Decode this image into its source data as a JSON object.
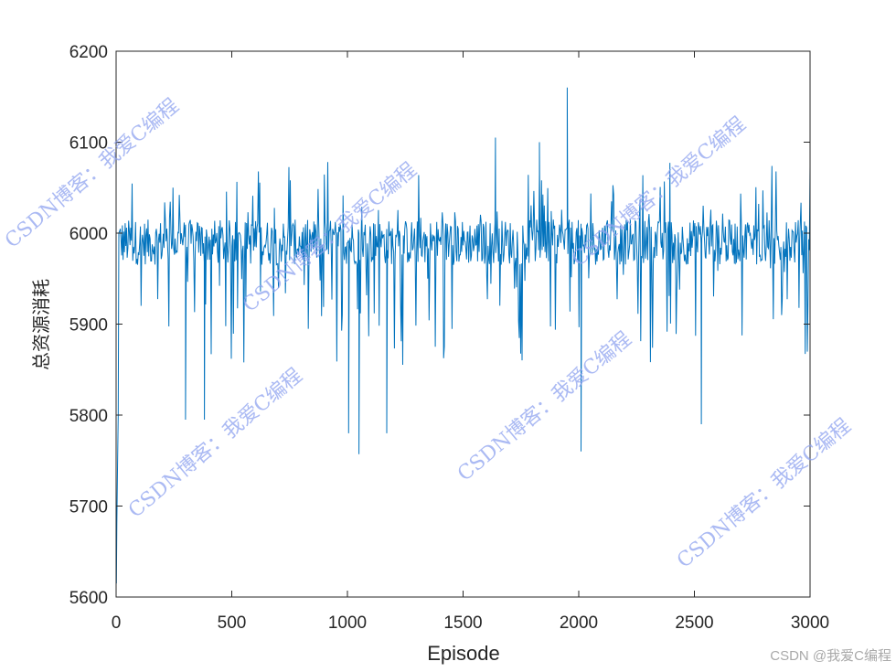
{
  "chart_data": {
    "type": "line",
    "title": "",
    "xlabel": "Episode",
    "ylabel": "总资源消耗",
    "xlim": [
      0,
      3000
    ],
    "ylim": [
      5600,
      6200
    ],
    "xticks": [
      "0",
      "500",
      "1000",
      "1500",
      "2000",
      "2500",
      "3000"
    ],
    "yticks": [
      "5600",
      "5700",
      "5800",
      "5900",
      "6000",
      "6100",
      "6200"
    ],
    "grid": false,
    "legend": "none",
    "series": [
      {
        "color": "#0072bd",
        "baseline": 5990,
        "notable_points": [
          {
            "x": 1,
            "y": 5615
          },
          {
            "x": 3,
            "y": 5680
          },
          {
            "x": 300,
            "y": 5795
          },
          {
            "x": 382,
            "y": 5795
          },
          {
            "x": 1005,
            "y": 5780
          },
          {
            "x": 1050,
            "y": 5757
          },
          {
            "x": 1170,
            "y": 5780
          },
          {
            "x": 1640,
            "y": 6105
          },
          {
            "x": 1830,
            "y": 6100
          },
          {
            "x": 1950,
            "y": 6160
          },
          {
            "x": 2010,
            "y": 5760
          },
          {
            "x": 2530,
            "y": 5790
          }
        ]
      }
    ]
  },
  "watermark": {
    "text": "CSDN博客：我爱C编程",
    "corner": "CSDN @我爱C编程"
  }
}
